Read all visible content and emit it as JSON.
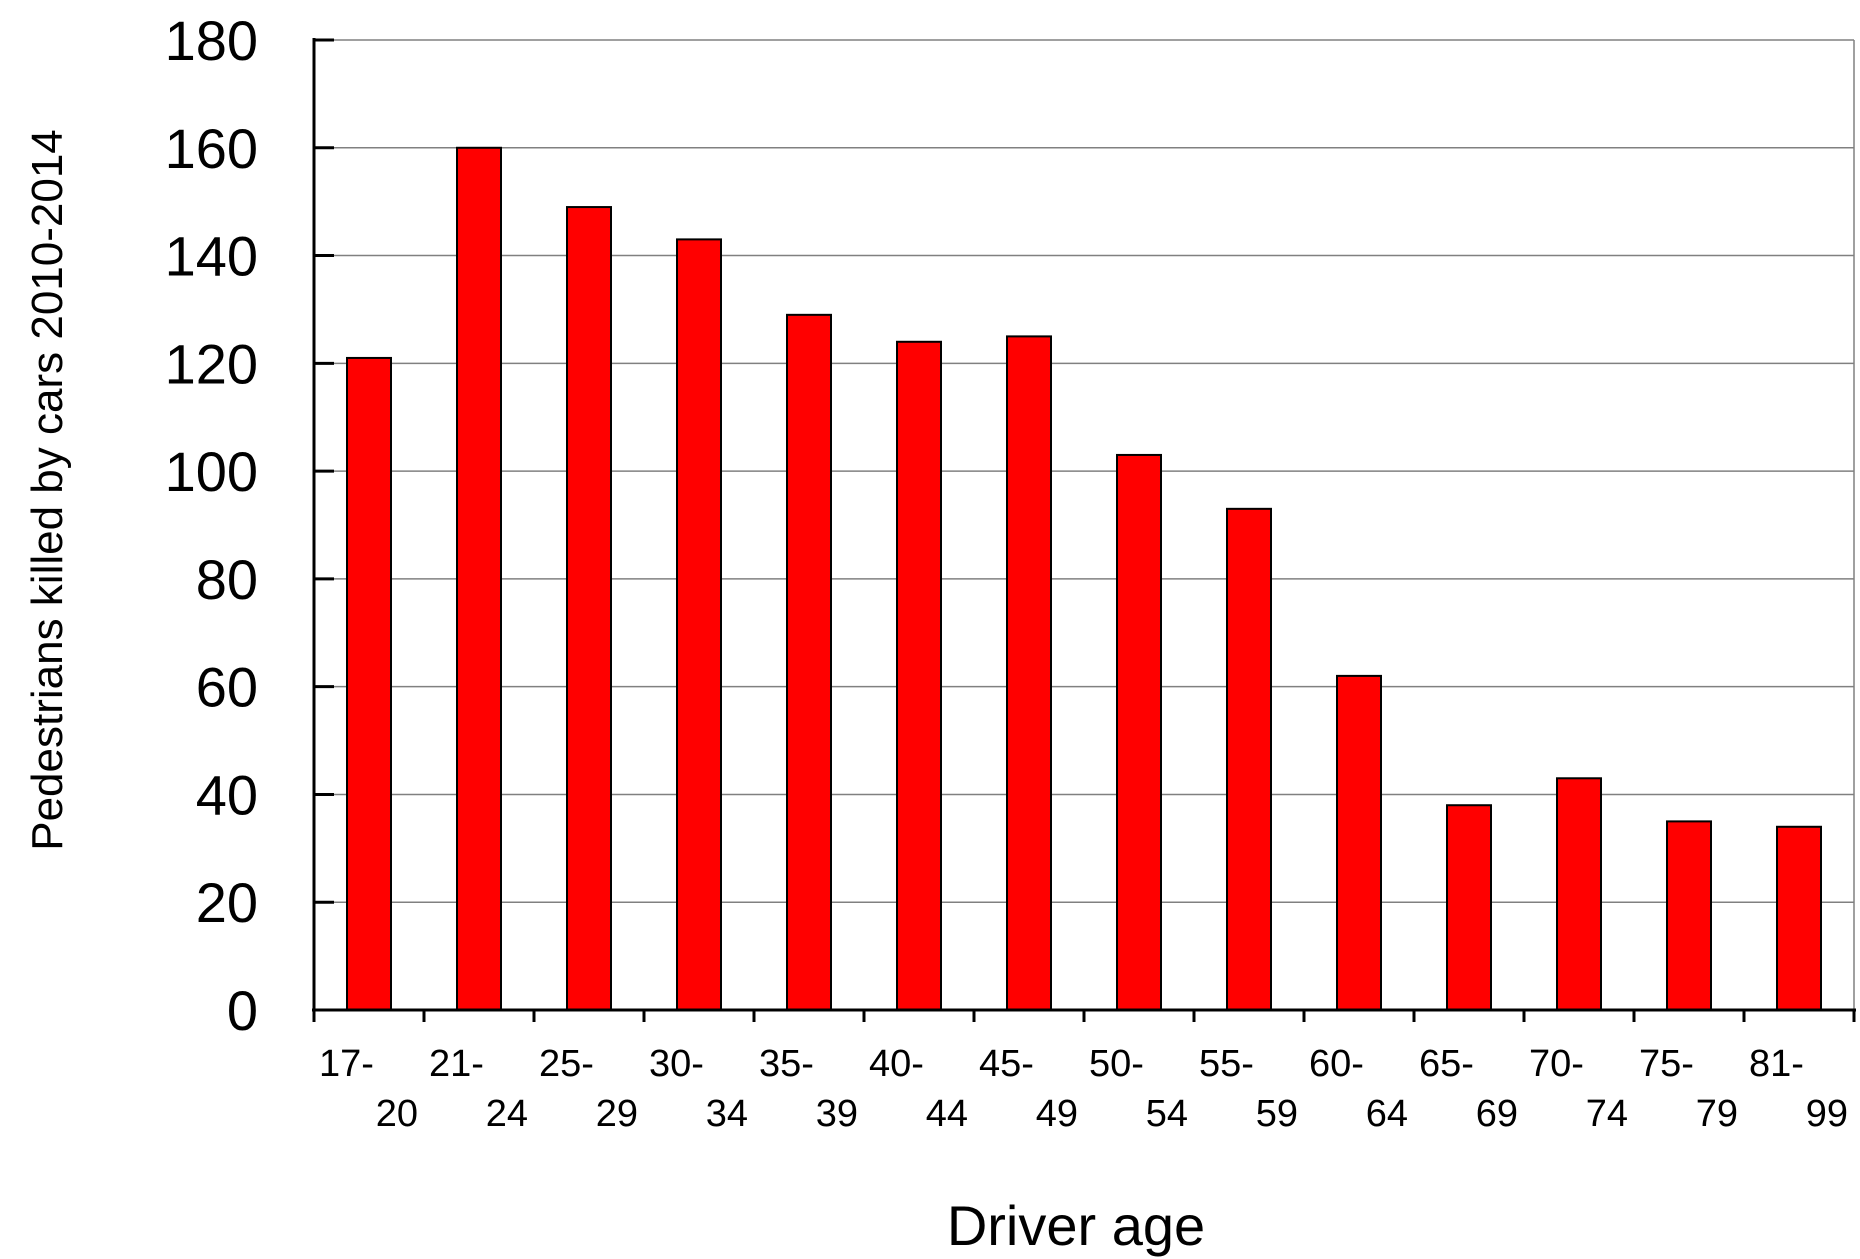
{
  "chart_data": {
    "type": "bar",
    "title": "",
    "xlabel": "Driver age",
    "ylabel": "Pedestrians killed by cars 2010-2014",
    "categories": [
      {
        "top": "17-",
        "bottom": "20"
      },
      {
        "top": "21-",
        "bottom": "24"
      },
      {
        "top": "25-",
        "bottom": "29"
      },
      {
        "top": "30-",
        "bottom": "34"
      },
      {
        "top": "35-",
        "bottom": "39"
      },
      {
        "top": "40-",
        "bottom": "44"
      },
      {
        "top": "45-",
        "bottom": "49"
      },
      {
        "top": "50-",
        "bottom": "54"
      },
      {
        "top": "55-",
        "bottom": "59"
      },
      {
        "top": "60-",
        "bottom": "64"
      },
      {
        "top": "65-",
        "bottom": "69"
      },
      {
        "top": "70-",
        "bottom": "74"
      },
      {
        "top": "75-",
        "bottom": "79"
      },
      {
        "top": "81-",
        "bottom": "99"
      }
    ],
    "values": [
      121,
      160,
      149,
      143,
      129,
      124,
      125,
      103,
      93,
      62,
      38,
      43,
      35,
      34
    ],
    "ylim": [
      0,
      180
    ],
    "yticks": [
      0,
      20,
      40,
      60,
      80,
      100,
      120,
      140,
      160,
      180
    ],
    "grid": true,
    "legend": "none",
    "colors": {
      "bar_fill": "#ff0000",
      "bar_stroke": "#000000",
      "grid": "#808080",
      "axis": "#000000"
    }
  }
}
